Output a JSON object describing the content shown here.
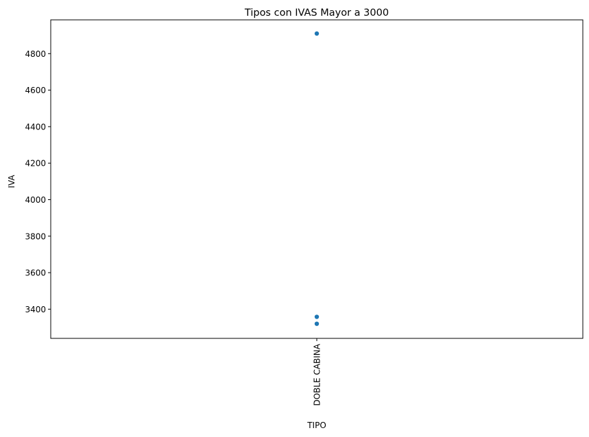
{
  "chart_data": {
    "type": "scatter",
    "title": "Tipos con IVAS Mayor a 3000",
    "xlabel": "TIPO",
    "ylabel": "IVA",
    "categories": [
      "DOBLE CABINA"
    ],
    "series": [
      {
        "points": [
          {
            "x": "DOBLE CABINA",
            "y": 4910
          },
          {
            "x": "DOBLE CABINA",
            "y": 3358
          },
          {
            "x": "DOBLE CABINA",
            "y": 3320
          }
        ]
      }
    ],
    "ylim": [
      3240,
      4985
    ],
    "yticks": [
      3400,
      3600,
      3800,
      4000,
      4200,
      4400,
      4600,
      4800
    ],
    "grid": false,
    "legend": "none",
    "marker_color": "#1f77b4"
  }
}
